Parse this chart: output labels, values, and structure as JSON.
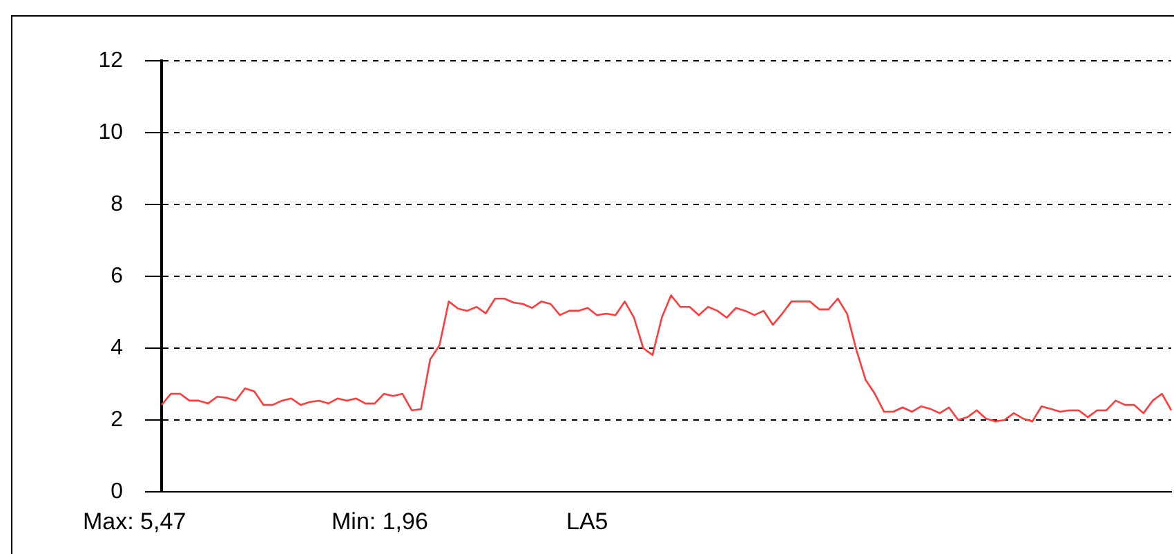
{
  "chart_data": {
    "type": "line",
    "tick_labels": "y",
    "grid": "y",
    "legend": false,
    "marker": "none",
    "line_style": "solid",
    "ylim": [
      0,
      12
    ],
    "yticks": [
      0,
      2,
      4,
      6,
      8,
      10,
      12
    ],
    "annotations": [
      "Max: 5,47",
      "Min: 1,96",
      "LA5"
    ],
    "categories": [
      null,
      null,
      null,
      null,
      null,
      null,
      null,
      null,
      null,
      null,
      null,
      null,
      null,
      null,
      null,
      null,
      null,
      null,
      null,
      null,
      null,
      null,
      null,
      null,
      null,
      null,
      null,
      null,
      null,
      null,
      null,
      null,
      null,
      null,
      null,
      null,
      null,
      null,
      null,
      null,
      null,
      null,
      null,
      null,
      null,
      null,
      null,
      null,
      null,
      null,
      null,
      null,
      null,
      null,
      null,
      null,
      null,
      null,
      null,
      null,
      null,
      null,
      null,
      null,
      null,
      null,
      null,
      null,
      null,
      null,
      null,
      null,
      null,
      null,
      null,
      null,
      null,
      null,
      null,
      null,
      null,
      null,
      null,
      null,
      null,
      null,
      null,
      null,
      null,
      null,
      null,
      null,
      null,
      null,
      null,
      null,
      null,
      null,
      null,
      null,
      null,
      null,
      null,
      null,
      null,
      null,
      null,
      null,
      null,
      null
    ],
    "series": [
      {
        "color": "#ff3b3b",
        "values": [
          2.42,
          2.73,
          2.73,
          2.54,
          2.54,
          2.46,
          2.65,
          2.62,
          2.54,
          2.88,
          2.8,
          2.42,
          2.42,
          2.54,
          2.6,
          2.42,
          2.5,
          2.54,
          2.46,
          2.6,
          2.54,
          2.6,
          2.46,
          2.46,
          2.73,
          2.67,
          2.73,
          2.27,
          2.3,
          3.69,
          4.08,
          5.3,
          5.1,
          5.04,
          5.15,
          4.97,
          5.38,
          5.38,
          5.27,
          5.23,
          5.12,
          5.3,
          5.23,
          4.92,
          5.04,
          5.04,
          5.12,
          4.92,
          4.96,
          4.92,
          5.3,
          4.85,
          4.0,
          3.81,
          4.85,
          5.47,
          5.15,
          5.15,
          4.92,
          5.15,
          5.04,
          4.85,
          5.12,
          5.04,
          4.92,
          5.04,
          4.65,
          4.96,
          5.3,
          5.3,
          5.3,
          5.08,
          5.08,
          5.38,
          4.96,
          3.96,
          3.12,
          2.73,
          2.23,
          2.23,
          2.35,
          2.23,
          2.38,
          2.31,
          2.19,
          2.35,
          2.0,
          2.08,
          2.27,
          2.04,
          1.96,
          2.0,
          2.19,
          2.04,
          1.96,
          2.38,
          2.31,
          2.23,
          2.27,
          2.27,
          2.08,
          2.27,
          2.27,
          2.54,
          2.42,
          2.42,
          2.19,
          2.54,
          2.73,
          2.27
        ]
      }
    ]
  }
}
